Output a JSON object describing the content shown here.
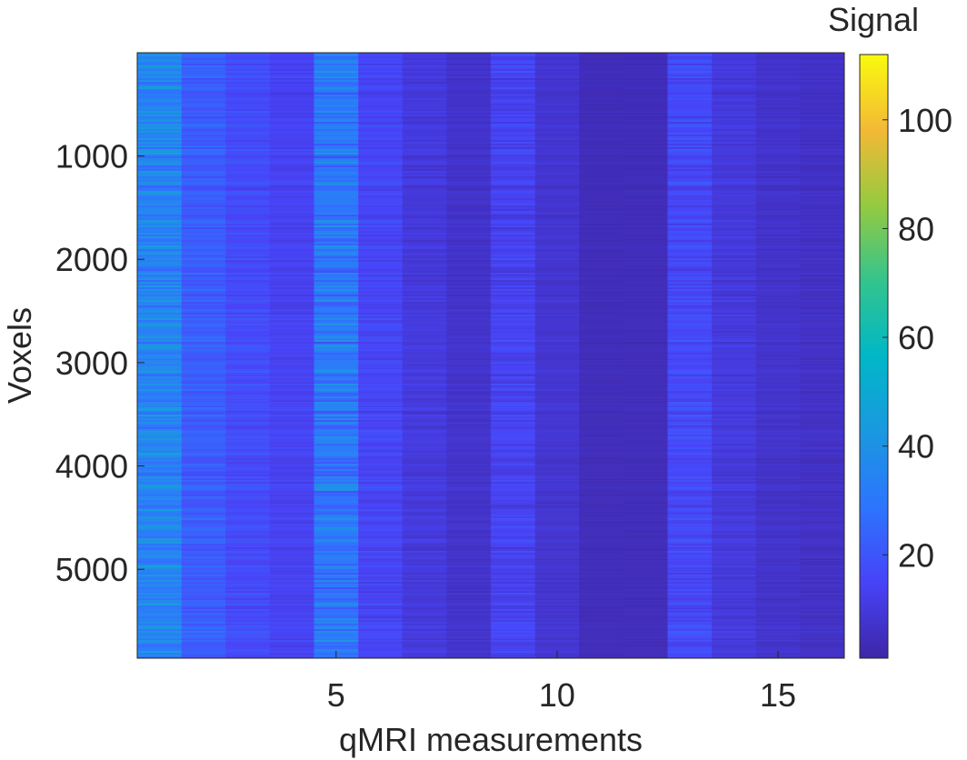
{
  "chart_data": {
    "type": "heatmap",
    "xlabel": "qMRI measurements",
    "ylabel": "Voxels",
    "colorbar_title": "Signal",
    "x_ticks": [
      5,
      10,
      15
    ],
    "y_ticks": [
      1000,
      2000,
      3000,
      4000,
      5000
    ],
    "colorbar_ticks": [
      20,
      40,
      60,
      80,
      100
    ],
    "xlim": [
      0.5,
      16.5
    ],
    "ylim": [
      1,
      5860
    ],
    "y_direction": "reversed",
    "clim": [
      1,
      112
    ],
    "colormap": "parula",
    "n_measurements": 16,
    "n_voxels": 5860,
    "column_mean_signal": [
      35,
      22,
      17,
      14,
      30,
      15,
      10,
      7,
      14,
      8,
      4,
      4,
      16,
      10,
      7,
      6
    ],
    "column_signal_spread": [
      10,
      5,
      4,
      3,
      11,
      4,
      3,
      2,
      5,
      2,
      1,
      1,
      5,
      3,
      2,
      2
    ]
  }
}
